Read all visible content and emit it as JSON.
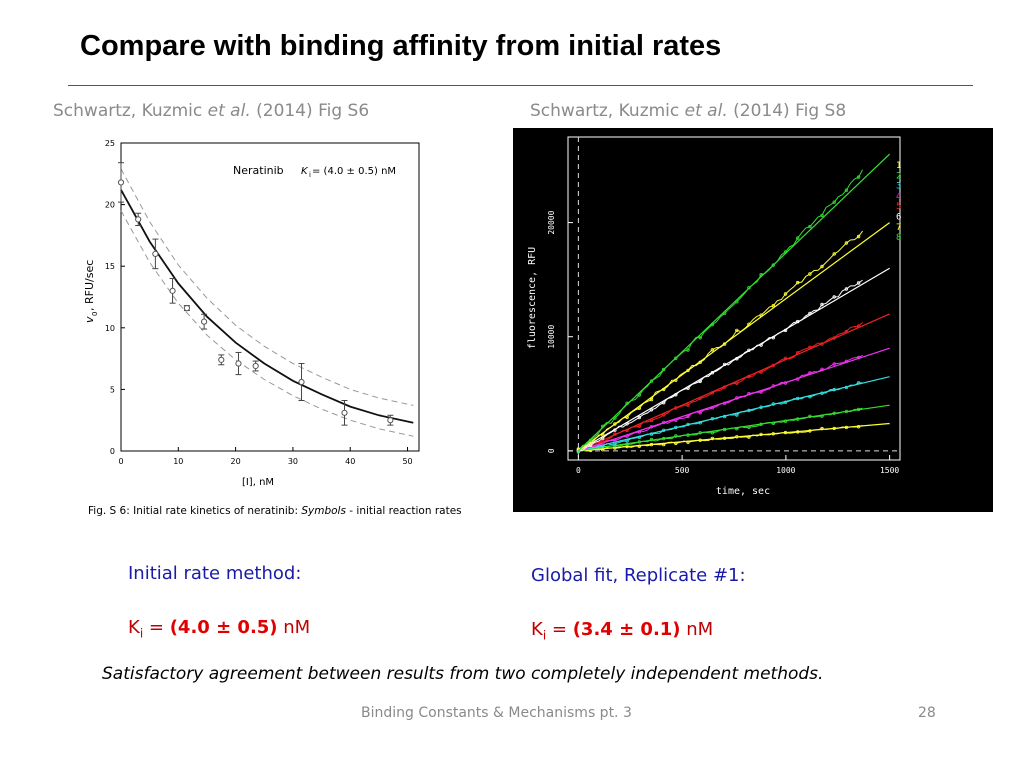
{
  "slide": {
    "title": "Compare with binding affinity from initial rates",
    "left_citation": {
      "authors": "Schwartz, Kuzmic ",
      "etal": "et al.",
      "rest": " (2014) Fig S6"
    },
    "right_citation": {
      "authors": "Schwartz, Kuzmic ",
      "etal": "et al.",
      "rest": " (2014) Fig S8"
    },
    "left_method": "Initial rate method:",
    "left_k": {
      "symbol": "K",
      "sub": "i",
      "eq": " = ",
      "value": "(4.0 ± 0.5)",
      "unit": " nM"
    },
    "right_method": "Global fit, Replicate #1:",
    "right_k": {
      "symbol": "K",
      "sub": "i",
      "eq": " = ",
      "value": "(3.4 ± 0.1)",
      "unit": " nM"
    },
    "conclusion": "Satisfactory agreement between results from two completely independent methods.",
    "footer_text": "Binding Constants & Mechanisms pt. 3",
    "page_number": "28"
  },
  "chart_data": [
    {
      "type": "scatter",
      "title": "Neratinib",
      "annotation_k": "K",
      "annotation_sub": "i",
      "annotation_value": " = (4.0 ± 0.5) nM",
      "xlabel": "[I], nM",
      "ylabel_main": "v",
      "ylabel_sub": "0",
      "ylabel_rest": ", RFU/sec",
      "xlim": [
        0,
        52
      ],
      "ylim": [
        0,
        25
      ],
      "xticks": [
        "0",
        "10",
        "20",
        "30",
        "40",
        "50"
      ],
      "yticks": [
        "0",
        "5",
        "10",
        "15",
        "20",
        "25"
      ],
      "points": [
        {
          "x": 0,
          "y": 21.8,
          "err": 1.6
        },
        {
          "x": 3,
          "y": 18.8,
          "err": 0.5
        },
        {
          "x": 6,
          "y": 16.0,
          "err": 1.2
        },
        {
          "x": 9,
          "y": 13.0,
          "err": 1.0
        },
        {
          "x": 11.5,
          "y": 11.6,
          "err": 0.2
        },
        {
          "x": 14.5,
          "y": 10.5,
          "err": 0.6
        },
        {
          "x": 17.5,
          "y": 7.4,
          "err": 0.4
        },
        {
          "x": 20.5,
          "y": 7.1,
          "err": 0.9
        },
        {
          "x": 23.5,
          "y": 6.9,
          "err": 0.4
        },
        {
          "x": 31.5,
          "y": 5.6,
          "err": 1.5
        },
        {
          "x": 39,
          "y": 3.1,
          "err": 1.0
        },
        {
          "x": 47,
          "y": 2.5,
          "err": 0.4
        }
      ],
      "fit_curve": {
        "x": [
          0,
          5,
          10,
          15,
          20,
          25,
          30,
          35,
          40,
          45,
          51
        ],
        "y": [
          21.2,
          17.0,
          13.6,
          10.9,
          8.8,
          7.1,
          5.7,
          4.6,
          3.6,
          2.9,
          2.3
        ]
      },
      "band_upper": {
        "x": [
          0,
          5,
          10,
          15,
          20,
          25,
          30,
          35,
          40,
          45,
          51
        ],
        "y": [
          22.9,
          18.6,
          15.1,
          12.4,
          10.2,
          8.5,
          7.1,
          6.0,
          5.0,
          4.3,
          3.7
        ]
      },
      "band_lower": {
        "x": [
          0,
          5,
          10,
          15,
          20,
          25,
          30,
          35,
          40,
          45,
          51
        ],
        "y": [
          19.5,
          15.3,
          12.0,
          9.4,
          7.4,
          5.8,
          4.5,
          3.4,
          2.5,
          1.8,
          1.2
        ]
      },
      "caption": "Fig. S 6:  Initial rate kinetics of neratinib: ",
      "caption_italic": "Symbols",
      "caption_rest": " - initial reaction rates"
    },
    {
      "type": "line",
      "xlabel": "time, sec",
      "ylabel": "fluorescence, RFU",
      "xlim": [
        -50,
        1550
      ],
      "ylim": [
        -800,
        27500
      ],
      "xticks": [
        "0",
        "500",
        "1000",
        "1500"
      ],
      "yticks": [
        "0",
        "10000",
        "20000"
      ],
      "series": [
        {
          "name": "1",
          "color": "#ffff33",
          "fit_end": 2400,
          "data_end_x": 1370,
          "data_end_y": 2200
        },
        {
          "name": "2",
          "color": "#33dd33",
          "fit_end": 4000,
          "data_end_x": 1370,
          "data_end_y": 3700
        },
        {
          "name": "3",
          "color": "#33dddd",
          "fit_end": 6500,
          "data_end_x": 1370,
          "data_end_y": 6000
        },
        {
          "name": "4",
          "color": "#ee33ee",
          "fit_end": 9000,
          "data_end_x": 1370,
          "data_end_y": 8400
        },
        {
          "name": "5",
          "color": "#ee2222",
          "fit_end": 12000,
          "data_end_x": 1370,
          "data_end_y": 11200
        },
        {
          "name": "6",
          "color": "#ffffff",
          "fit_end": 16000,
          "data_end_x": 1370,
          "data_end_y": 15000
        },
        {
          "name": "7",
          "color": "#ffff33",
          "fit_end": 20000,
          "data_end_x": 1370,
          "data_end_y": 19200
        },
        {
          "name": "8",
          "color": "#33dd33",
          "fit_end": 26000,
          "data_end_x": 1370,
          "data_end_y": 24500
        }
      ]
    }
  ]
}
